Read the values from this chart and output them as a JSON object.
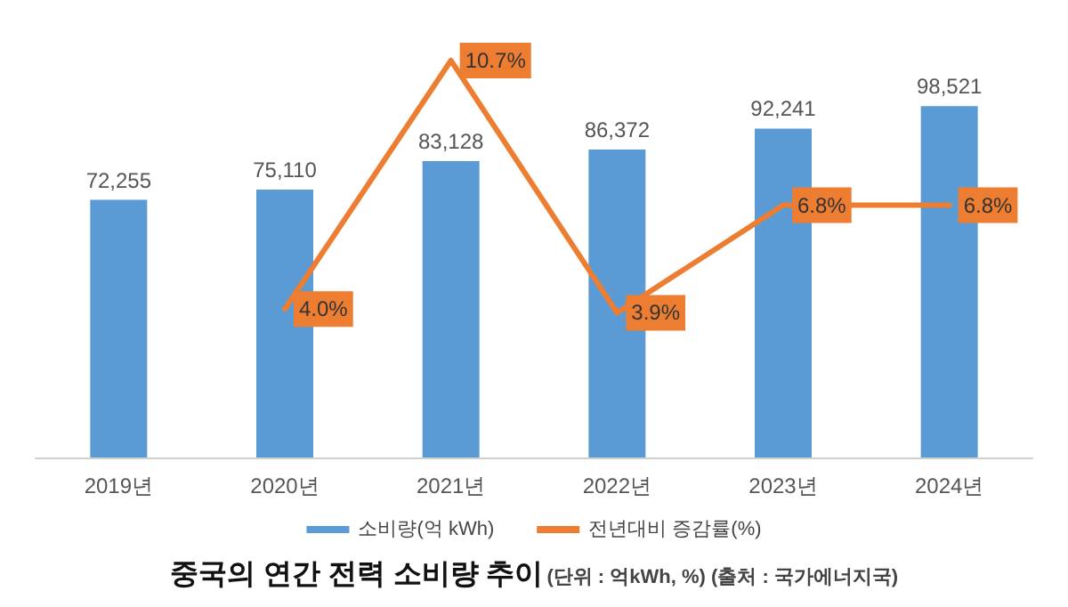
{
  "chart_data": {
    "type": "bar",
    "title": "중국의 연간 전력 소비량 추이",
    "subtitle": "(단위 : 억kWh, %) (출처 : 국가에너지국)",
    "categories": [
      "2019년",
      "2020년",
      "2021년",
      "2022년",
      "2023년",
      "2024년"
    ],
    "series": [
      {
        "name": "소비량(억 kWh)",
        "color": "#5b9bd5",
        "values": [
          72255,
          75110,
          83128,
          86372,
          92241,
          98521
        ],
        "value_labels": [
          "72,255",
          "75,110",
          "83,128",
          "86,372",
          "92,241",
          "98,521"
        ]
      },
      {
        "name": "전년대비 증감률(%)",
        "type": "line",
        "axis": "y2",
        "color": "#ed7d31",
        "values": [
          null,
          4.0,
          10.7,
          3.9,
          6.8,
          6.8
        ],
        "value_labels": [
          null,
          "4.0%",
          "10.7%",
          "3.9%",
          "6.8%",
          "6.8%"
        ]
      }
    ],
    "tick_labels": "x",
    "legend": "bottom",
    "marker": "none",
    "line_style": "solid"
  }
}
